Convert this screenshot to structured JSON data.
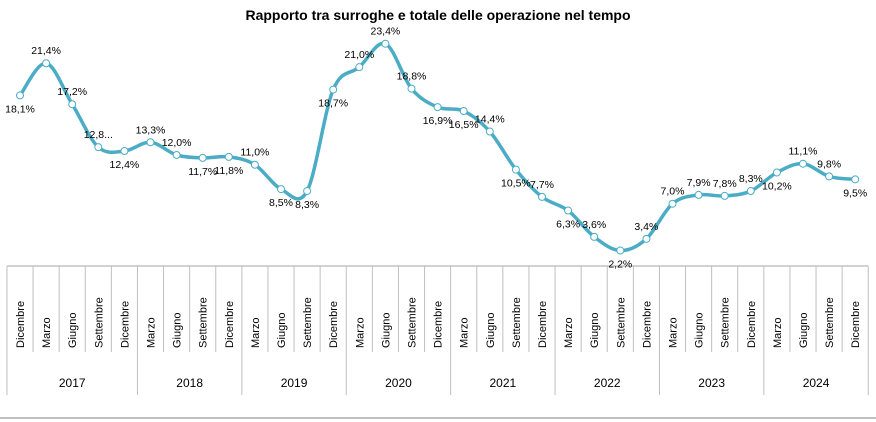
{
  "chart_data": {
    "type": "line",
    "title": "Rapporto tra surroghe e totale delle operazione nel tempo",
    "categories": [
      "Dicembre",
      "Marzo",
      "Giugno",
      "Settembre",
      "Dicembre",
      "Marzo",
      "Giugno",
      "Settembre",
      "Dicembre",
      "Marzo",
      "Giugno",
      "Settembre",
      "Dicembre",
      "Marzo",
      "Giugno",
      "Settembre",
      "Dicembre",
      "Marzo",
      "Giugno",
      "Settembre",
      "Dicembre",
      "Marzo",
      "Giugno",
      "Settembre",
      "Dicembre",
      "Marzo",
      "Giugno",
      "Settembre",
      "Dicembre",
      "Marzo",
      "Giugno",
      "Settembre",
      "Dicembre"
    ],
    "year_groups": [
      {
        "label": "2017",
        "start": 0,
        "end": 4
      },
      {
        "label": "2018",
        "start": 5,
        "end": 8
      },
      {
        "label": "2019",
        "start": 9,
        "end": 12
      },
      {
        "label": "2020",
        "start": 13,
        "end": 16
      },
      {
        "label": "2021",
        "start": 17,
        "end": 20
      },
      {
        "label": "2022",
        "start": 21,
        "end": 24
      },
      {
        "label": "2023",
        "start": 25,
        "end": 28
      },
      {
        "label": "2024",
        "start": 29,
        "end": 32
      }
    ],
    "values": [
      18.1,
      21.4,
      17.2,
      12.8,
      12.4,
      13.3,
      12.0,
      11.7,
      11.8,
      11.0,
      8.5,
      8.3,
      18.7,
      21.0,
      23.4,
      18.8,
      16.9,
      16.5,
      14.4,
      10.5,
      7.7,
      6.3,
      3.6,
      2.2,
      3.4,
      7.0,
      7.9,
      7.8,
      8.3,
      10.2,
      11.1,
      9.8,
      9.5
    ],
    "data_labels": [
      "18,1%",
      "21,4%",
      "17,2%",
      "12,8...",
      "12,4%",
      "13,3%",
      "12,0%",
      "11,7%",
      "11,8%",
      "11,0%",
      "8,5%",
      "8,3%",
      "18,7%",
      "21,0%",
      "23,4%",
      "18,8%",
      "16,9%",
      "16,5%",
      "14,4%",
      "10,5%",
      "7,7%",
      "6,3%",
      "3,6%",
      "2,2%",
      "3,4%",
      "7,0%",
      "7,9%",
      "7,8%",
      "8,3%",
      "10,2%",
      "11,1%",
      "9,8%",
      "9,5%"
    ],
    "label_positions": [
      "below",
      "above",
      "above",
      "above",
      "below",
      "above",
      "above",
      "below",
      "below",
      "above",
      "below",
      "below",
      "below",
      "above",
      "above",
      "above",
      "below",
      "below",
      "above",
      "below",
      "above",
      "below",
      "above",
      "below",
      "above",
      "above",
      "above",
      "above",
      "above",
      "below",
      "above",
      "above",
      "below"
    ],
    "line_color": "#4BACC6",
    "marker_fill": "#ffffff",
    "marker_stroke": "#4BACC6",
    "ylim": [
      0,
      24.5
    ],
    "grid": false,
    "legend": "none"
  }
}
